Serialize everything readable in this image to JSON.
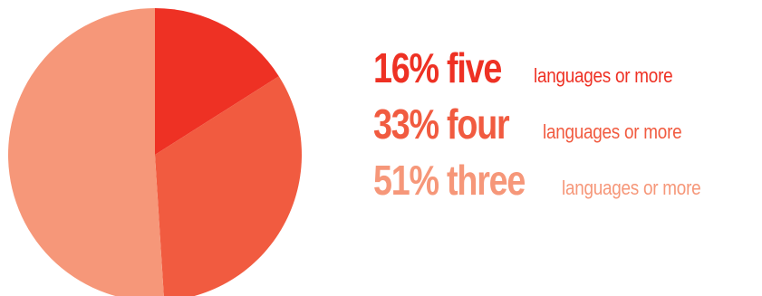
{
  "chart_data": {
    "type": "pie",
    "slices": [
      {
        "label": "five",
        "value": 16,
        "color": "#ee3124"
      },
      {
        "label": "four",
        "value": 33,
        "color": "#f15b40"
      },
      {
        "label": "three",
        "value": 51,
        "color": "#f69779"
      }
    ]
  },
  "legend": [
    {
      "big": "16% five",
      "small": "languages or more",
      "color": "#ee3124"
    },
    {
      "big": "33% four",
      "small": "languages or more",
      "color": "#f15b40"
    },
    {
      "big": "51% three",
      "small": "languages or more",
      "color": "#f69779"
    }
  ]
}
